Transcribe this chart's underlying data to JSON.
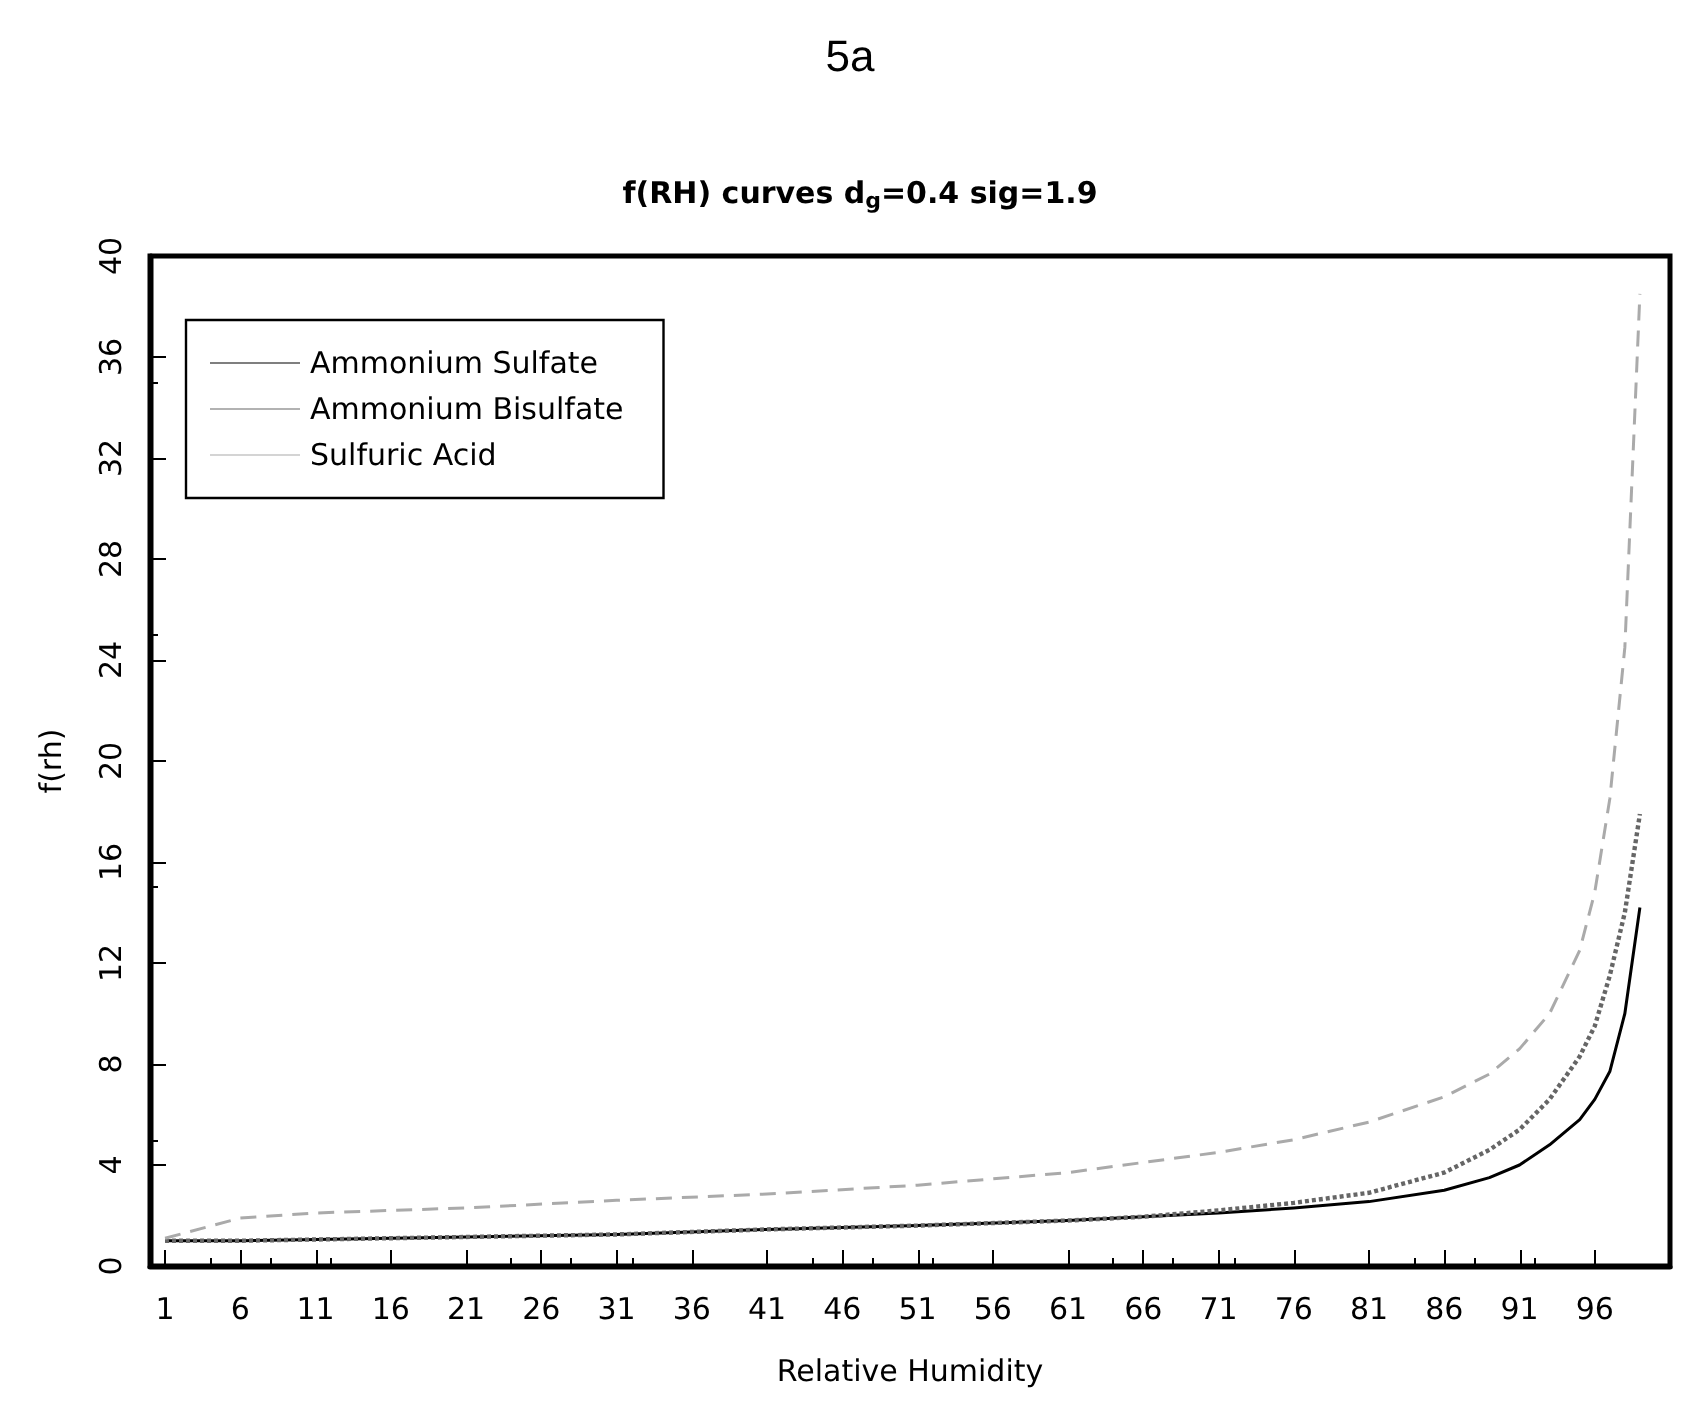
{
  "chart_data": {
    "type": "line",
    "title": "5a",
    "subtitle": "f(RH) curves d$_{g}$=0.4 sig=1.9",
    "xlabel": "Relative Humidity",
    "ylabel": "f(rh)",
    "xlim": [
      0,
      101
    ],
    "xticks": [
      1,
      6,
      11,
      16,
      21,
      26,
      31,
      36,
      41,
      46,
      51,
      56,
      61,
      66,
      71,
      76,
      81,
      86,
      91,
      96
    ],
    "ylim": [
      0,
      40
    ],
    "yticks": [
      0,
      4,
      8,
      12,
      16,
      20,
      24,
      28,
      32,
      36,
      40
    ],
    "x": [
      1,
      6,
      11,
      21,
      31,
      41,
      51,
      61,
      66,
      71,
      76,
      81,
      86,
      89,
      91,
      93,
      95,
      96,
      97,
      98,
      99
    ],
    "series": [
      {
        "name": "Ammonium Sulfate",
        "color": "#000000",
        "line_style": "solid",
        "values": [
          1.0,
          1.0,
          1.05,
          1.15,
          1.25,
          1.45,
          1.6,
          1.8,
          1.95,
          2.1,
          2.3,
          2.55,
          3.0,
          3.5,
          4.0,
          4.8,
          5.8,
          6.6,
          7.7,
          10.0,
          14.2
        ]
      },
      {
        "name": "Ammonium Bisulfate",
        "color": "#666666",
        "line_style": "dotted",
        "values": [
          1.0,
          1.0,
          1.05,
          1.15,
          1.25,
          1.45,
          1.6,
          1.8,
          1.95,
          2.2,
          2.5,
          2.9,
          3.7,
          4.6,
          5.4,
          6.6,
          8.3,
          9.5,
          11.5,
          14.0,
          17.9
        ]
      },
      {
        "name": "Sulfuric Acid",
        "color": "#aaaaaa",
        "line_style": "dashed",
        "values": [
          1.1,
          1.9,
          2.1,
          2.3,
          2.6,
          2.85,
          3.2,
          3.7,
          4.1,
          4.5,
          5.0,
          5.7,
          6.7,
          7.6,
          8.6,
          10.0,
          12.5,
          14.8,
          18.5,
          24.5,
          38.5
        ]
      }
    ],
    "legend": "top left",
    "grid": false,
    "marker": "none"
  }
}
